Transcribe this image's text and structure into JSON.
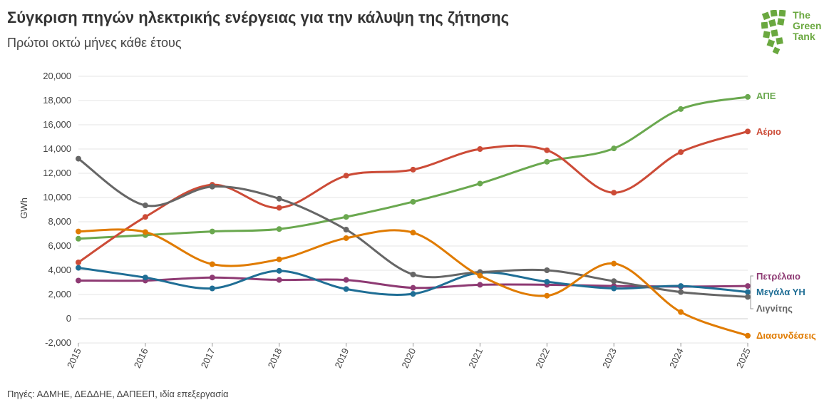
{
  "header": {
    "title": "Σύγκριση πηγών ηλεκτρικής ενέργειας για την κάλυψη της ζήτησης",
    "subtitle": "Πρώτοι οκτώ μήνες κάθε έτους"
  },
  "logo": {
    "line1": "The",
    "line2": "Green",
    "line3": "Tank",
    "color": "#6aa83f"
  },
  "footer": {
    "source": "Πηγές: ΑΔΜΗΕ, ΔΕΔΔΗΕ, ΔΑΠΕΕΠ, ιδία επεξεργασία"
  },
  "chart_data": {
    "type": "line",
    "title": "Σύγκριση πηγών ηλεκτρικής ενέργειας για την κάλυψη της ζήτησης",
    "subtitle": "Πρώτοι οκτώ μήνες κάθε έτους",
    "xlabel": "",
    "ylabel": "GWh",
    "ylim": [
      -2000,
      20000
    ],
    "yticks": [
      -2000,
      0,
      2000,
      4000,
      6000,
      8000,
      10000,
      12000,
      14000,
      16000,
      18000,
      20000
    ],
    "ytick_labels": [
      "-2,000",
      "0",
      "2,000",
      "4,000",
      "6,000",
      "8,000",
      "10,000",
      "12,000",
      "14,000",
      "16,000",
      "18,000",
      "20,000"
    ],
    "x": [
      "2015",
      "2016",
      "2017",
      "2018",
      "2019",
      "2020",
      "2021",
      "2022",
      "2023",
      "2024",
      "2025"
    ],
    "grid": true,
    "series": [
      {
        "name": "ΑΠΕ",
        "color": "#6aa84f",
        "values": [
          6600,
          6900,
          7200,
          7400,
          8400,
          9650,
          11150,
          12950,
          14050,
          17300,
          18300
        ]
      },
      {
        "name": "Αέριο",
        "color": "#cc4b37",
        "values": [
          4650,
          8400,
          11050,
          9150,
          11800,
          12300,
          14000,
          13900,
          10400,
          13750,
          15450
        ]
      },
      {
        "name": "Πετρέλαιο",
        "color": "#8e3a73",
        "values": [
          3150,
          3150,
          3400,
          3200,
          3200,
          2550,
          2800,
          2800,
          2700,
          2650,
          2700
        ]
      },
      {
        "name": "Μεγάλα ΥΗ",
        "color": "#1f6e95",
        "values": [
          4200,
          3400,
          2500,
          3950,
          2450,
          2050,
          3800,
          3050,
          2500,
          2700,
          2200
        ]
      },
      {
        "name": "Λιγνίτης",
        "color": "#666666",
        "values": [
          13200,
          9350,
          10900,
          9900,
          7350,
          3650,
          3850,
          4000,
          3100,
          2200,
          1800
        ]
      },
      {
        "name": "Διασυνδέσεις",
        "color": "#e07b00",
        "values": [
          7200,
          7150,
          4500,
          4900,
          6650,
          7100,
          3550,
          1900,
          4550,
          550,
          -1400
        ]
      }
    ]
  }
}
